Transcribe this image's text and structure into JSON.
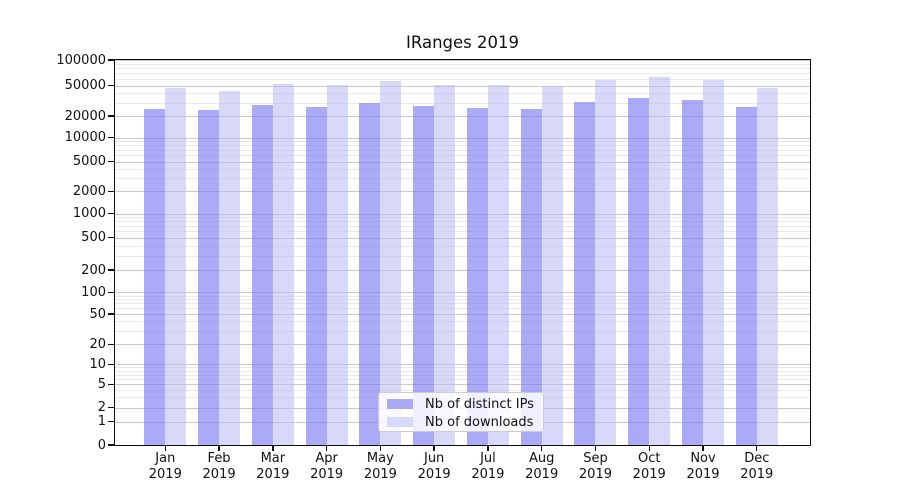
{
  "title": "IRanges 2019",
  "legend": {
    "items": [
      {
        "label": "Nb of distinct IPs"
      },
      {
        "label": "Nb of downloads"
      }
    ]
  },
  "chart_data": {
    "type": "bar",
    "title": "IRanges 2019",
    "categories": [
      "Jan",
      "Feb",
      "Mar",
      "Apr",
      "May",
      "Jun",
      "Jul",
      "Aug",
      "Sep",
      "Oct",
      "Nov",
      "Dec"
    ],
    "year": "2019",
    "series": [
      {
        "name": "Nb of distinct IPs",
        "fill": "rgba(120,120,240,0.63)",
        "swatch": "#a9a9f4",
        "values": [
          24700,
          23800,
          27900,
          26500,
          29400,
          27100,
          25700,
          25000,
          30900,
          34900,
          32500,
          26500
        ]
      },
      {
        "name": "Nb of downloads",
        "fill": "rgba(185,185,245,0.56)",
        "swatch": "#d8d8f9",
        "values": [
          47200,
          42700,
          52100,
          51100,
          57400,
          51500,
          51100,
          50100,
          58000,
          63300,
          58400,
          47200
        ]
      }
    ],
    "xlabel": "",
    "ylabel": "",
    "yscale": "symlog",
    "ylim": [
      0,
      100000
    ],
    "y_major_ticks": [
      0,
      1,
      2,
      5,
      10,
      20,
      50,
      100,
      200,
      500,
      1000,
      2000,
      5000,
      10000,
      20000,
      50000,
      100000
    ],
    "grid": "horizontal, major and minor log lines",
    "legend_position": "lower center",
    "colors": {
      "grid_major": "#c9c9c9",
      "grid_minor": "#e9e9e9",
      "spine": "#0d0d0d"
    }
  }
}
